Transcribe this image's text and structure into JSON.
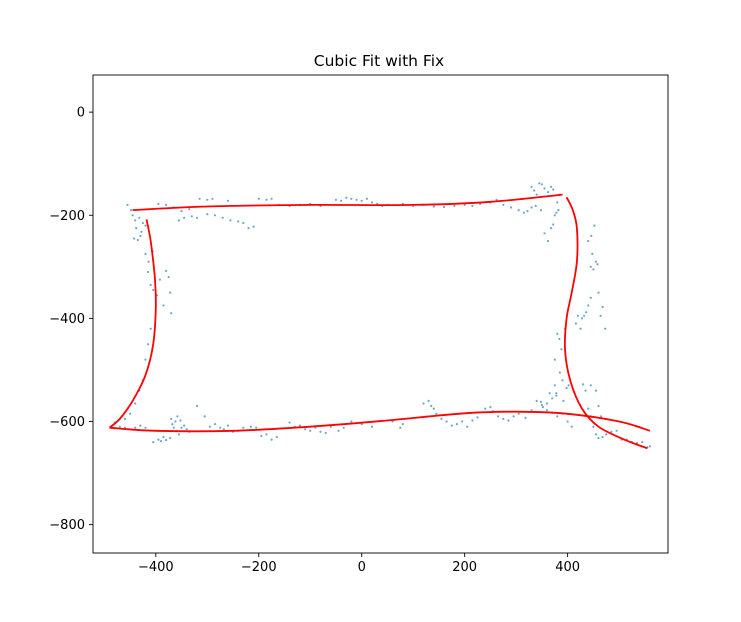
{
  "chart_data": {
    "type": "scatter",
    "title": "Cubic Fit with Fix",
    "xlabel": "",
    "ylabel": "",
    "xlim": [
      -522,
      595
    ],
    "ylim": [
      -855,
      72
    ],
    "xticks": [
      -400,
      -200,
      0,
      200,
      400
    ],
    "yticks": [
      0,
      -200,
      -400,
      -600,
      -800
    ],
    "xtick_labels": [
      "−400",
      "−200",
      "0",
      "200",
      "400"
    ],
    "ytick_labels": [
      "0",
      "−200",
      "−400",
      "−600",
      "−800"
    ],
    "grid": false,
    "legend": "none",
    "colors": {
      "points": "#1f77b4",
      "fit": "#ff0000"
    },
    "fit_curves": [
      {
        "points": [
          [
            -445,
            -190
          ],
          [
            -300,
            -183
          ],
          [
            -100,
            -180
          ],
          [
            100,
            -180
          ],
          [
            250,
            -174
          ],
          [
            390,
            -160
          ]
        ]
      },
      {
        "points": [
          [
            -490,
            -612
          ],
          [
            -400,
            -618
          ],
          [
            -250,
            -618
          ],
          [
            -100,
            -610
          ],
          [
            50,
            -598
          ],
          [
            200,
            -584
          ],
          [
            300,
            -581
          ],
          [
            400,
            -585
          ],
          [
            500,
            -600
          ],
          [
            560,
            -618
          ]
        ]
      },
      {
        "points": [
          [
            -418,
            -208
          ],
          [
            -410,
            -250
          ],
          [
            -402,
            -320
          ],
          [
            -400,
            -380
          ],
          [
            -405,
            -450
          ],
          [
            -420,
            -510
          ],
          [
            -445,
            -560
          ],
          [
            -470,
            -595
          ],
          [
            -490,
            -612
          ]
        ]
      },
      {
        "points": [
          [
            398,
            -165
          ],
          [
            410,
            -190
          ],
          [
            418,
            -225
          ],
          [
            418,
            -290
          ],
          [
            408,
            -350
          ],
          [
            398,
            -400
          ],
          [
            395,
            -460
          ],
          [
            405,
            -520
          ],
          [
            428,
            -575
          ],
          [
            460,
            -610
          ],
          [
            510,
            -635
          ],
          [
            555,
            -652
          ]
        ]
      }
    ],
    "scatter_points": [
      [
        -455,
        -180
      ],
      [
        -448,
        -190
      ],
      [
        -440,
        -210
      ],
      [
        -438,
        -225
      ],
      [
        -442,
        -245
      ],
      [
        -435,
        -248
      ],
      [
        -430,
        -240
      ],
      [
        -428,
        -232
      ],
      [
        -432,
        -205
      ],
      [
        -425,
        -215
      ],
      [
        -420,
        -220
      ],
      [
        -445,
        -200
      ],
      [
        -415,
        -310
      ],
      [
        -410,
        -335
      ],
      [
        -405,
        -345
      ],
      [
        -398,
        -355
      ],
      [
        -392,
        -325
      ],
      [
        -385,
        -375
      ],
      [
        -380,
        -308
      ],
      [
        -375,
        -320
      ],
      [
        -372,
        -350
      ],
      [
        -370,
        -390
      ],
      [
        -420,
        -275
      ],
      [
        -414,
        -290
      ],
      [
        -406,
        -270
      ],
      [
        -410,
        -420
      ],
      [
        -415,
        -450
      ],
      [
        -420,
        -480
      ],
      [
        -425,
        -520
      ],
      [
        -432,
        -540
      ],
      [
        -440,
        -565
      ],
      [
        -450,
        -585
      ],
      [
        -460,
        -595
      ],
      [
        -470,
        -610
      ],
      [
        -480,
        -602
      ],
      [
        -460,
        -612
      ],
      [
        -440,
        -612
      ],
      [
        -430,
        -608
      ],
      [
        -420,
        -612
      ],
      [
        -405,
        -640
      ],
      [
        -395,
        -635
      ],
      [
        -390,
        -638
      ],
      [
        -385,
        -630
      ],
      [
        -380,
        -636
      ],
      [
        -372,
        -632
      ],
      [
        -370,
        -595
      ],
      [
        -368,
        -605
      ],
      [
        -365,
        -612
      ],
      [
        -362,
        -600
      ],
      [
        -360,
        -618
      ],
      [
        -358,
        -590
      ],
      [
        -355,
        -625
      ],
      [
        -352,
        -598
      ],
      [
        -350,
        -612
      ],
      [
        -345,
        -608
      ],
      [
        -340,
        -615
      ],
      [
        -335,
        -620
      ],
      [
        -320,
        -570
      ],
      [
        -305,
        -590
      ],
      [
        -295,
        -610
      ],
      [
        -285,
        -605
      ],
      [
        -275,
        -612
      ],
      [
        -268,
        -615
      ],
      [
        -260,
        -608
      ],
      [
        -250,
        -620
      ],
      [
        -240,
        -618
      ],
      [
        -230,
        -612
      ],
      [
        -215,
        -610
      ],
      [
        -205,
        -612
      ],
      [
        -195,
        -628
      ],
      [
        -185,
        -625
      ],
      [
        -175,
        -635
      ],
      [
        -165,
        -630
      ],
      [
        -140,
        -602
      ],
      [
        -130,
        -610
      ],
      [
        -120,
        -608
      ],
      [
        -110,
        -615
      ],
      [
        -100,
        -618
      ],
      [
        -90,
        -612
      ],
      [
        -80,
        -620
      ],
      [
        -70,
        -622
      ],
      [
        -60,
        -610
      ],
      [
        -45,
        -618
      ],
      [
        -35,
        -612
      ],
      [
        -20,
        -600
      ],
      [
        0,
        -605
      ],
      [
        20,
        -610
      ],
      [
        60,
        -600
      ],
      [
        75,
        -612
      ],
      [
        80,
        -605
      ],
      [
        120,
        -565
      ],
      [
        130,
        -560
      ],
      [
        135,
        -570
      ],
      [
        140,
        -575
      ],
      [
        145,
        -585
      ],
      [
        155,
        -595
      ],
      [
        165,
        -600
      ],
      [
        175,
        -608
      ],
      [
        185,
        -605
      ],
      [
        195,
        -600
      ],
      [
        205,
        -610
      ],
      [
        215,
        -598
      ],
      [
        225,
        -592
      ],
      [
        240,
        -575
      ],
      [
        250,
        -572
      ],
      [
        255,
        -580
      ],
      [
        265,
        -590
      ],
      [
        275,
        -595
      ],
      [
        285,
        -598
      ],
      [
        295,
        -590
      ],
      [
        305,
        -585
      ],
      [
        318,
        -593
      ],
      [
        330,
        -578
      ],
      [
        340,
        -560
      ],
      [
        348,
        -562
      ],
      [
        352,
        -572
      ],
      [
        360,
        -565
      ],
      [
        365,
        -545
      ],
      [
        370,
        -555
      ],
      [
        378,
        -545
      ],
      [
        350,
        -568
      ],
      [
        360,
        -578
      ],
      [
        370,
        -583
      ],
      [
        380,
        -590
      ],
      [
        390,
        -585
      ],
      [
        380,
        -430
      ],
      [
        384,
        -440
      ],
      [
        388,
        -460
      ],
      [
        375,
        -480
      ],
      [
        375,
        -530
      ],
      [
        378,
        -550
      ],
      [
        385,
        -505
      ],
      [
        390,
        -520
      ],
      [
        392,
        -560
      ],
      [
        398,
        -535
      ],
      [
        402,
        -530
      ],
      [
        395,
        -420
      ],
      [
        400,
        -600
      ],
      [
        408,
        -610
      ],
      [
        412,
        -542
      ],
      [
        430,
        -528
      ],
      [
        435,
        -540
      ],
      [
        445,
        -530
      ],
      [
        455,
        -540
      ],
      [
        460,
        -570
      ],
      [
        465,
        -590
      ],
      [
        440,
        -575
      ],
      [
        445,
        -590
      ],
      [
        450,
        -610
      ],
      [
        455,
        -625
      ],
      [
        460,
        -632
      ],
      [
        468,
        -630
      ],
      [
        475,
        -625
      ],
      [
        485,
        -620
      ],
      [
        495,
        -618
      ],
      [
        505,
        -635
      ],
      [
        515,
        -635
      ],
      [
        525,
        -640
      ],
      [
        535,
        -642
      ],
      [
        545,
        -640
      ],
      [
        555,
        -650
      ],
      [
        560,
        -648
      ],
      [
        416,
        -410
      ],
      [
        420,
        -395
      ],
      [
        425,
        -420
      ],
      [
        428,
        -400
      ],
      [
        432,
        -395
      ],
      [
        436,
        -388
      ],
      [
        440,
        -375
      ],
      [
        445,
        -360
      ],
      [
        450,
        -305
      ],
      [
        455,
        -290
      ],
      [
        458,
        -295
      ],
      [
        460,
        -350
      ],
      [
        464,
        -395
      ],
      [
        468,
        -378
      ],
      [
        473,
        -420
      ],
      [
        440,
        -250
      ],
      [
        445,
        -300
      ],
      [
        448,
        -275
      ],
      [
        452,
        -220
      ],
      [
        446,
        -240
      ],
      [
        330,
        -145
      ],
      [
        335,
        -152
      ],
      [
        340,
        -160
      ],
      [
        345,
        -138
      ],
      [
        350,
        -140
      ],
      [
        355,
        -148
      ],
      [
        362,
        -155
      ],
      [
        368,
        -145
      ],
      [
        372,
        -150
      ],
      [
        375,
        -200
      ],
      [
        380,
        -175
      ],
      [
        385,
        -160
      ],
      [
        355,
        -235
      ],
      [
        362,
        -250
      ],
      [
        368,
        -225
      ],
      [
        372,
        -218
      ],
      [
        378,
        -195
      ],
      [
        382,
        -190
      ],
      [
        322,
        -192
      ],
      [
        330,
        -185
      ],
      [
        338,
        -182
      ],
      [
        348,
        -190
      ],
      [
        -355,
        -210
      ],
      [
        -345,
        -205
      ],
      [
        -330,
        -202
      ],
      [
        -320,
        -205
      ],
      [
        -300,
        -198
      ],
      [
        -285,
        -200
      ],
      [
        -270,
        -205
      ],
      [
        -255,
        -210
      ],
      [
        -240,
        -212
      ],
      [
        -230,
        -215
      ],
      [
        -220,
        -225
      ],
      [
        -210,
        -222
      ],
      [
        -395,
        -178
      ],
      [
        -380,
        -180
      ],
      [
        -365,
        -185
      ],
      [
        -350,
        -192
      ],
      [
        -335,
        -188
      ],
      [
        -315,
        -168
      ],
      [
        -300,
        -170
      ],
      [
        -290,
        -168
      ],
      [
        -260,
        -172
      ],
      [
        -200,
        -168
      ],
      [
        -185,
        -170
      ],
      [
        -175,
        -168
      ],
      [
        -160,
        -180
      ],
      [
        -140,
        -182
      ],
      [
        -120,
        -180
      ],
      [
        -100,
        -178
      ],
      [
        -80,
        -182
      ],
      [
        -50,
        -170
      ],
      [
        -40,
        -172
      ],
      [
        -30,
        -166
      ],
      [
        -20,
        -168
      ],
      [
        -10,
        -170
      ],
      [
        0,
        -172
      ],
      [
        10,
        -168
      ],
      [
        20,
        -175
      ],
      [
        30,
        -178
      ],
      [
        40,
        -182
      ],
      [
        50,
        -180
      ],
      [
        80,
        -178
      ],
      [
        100,
        -182
      ],
      [
        120,
        -180
      ],
      [
        140,
        -183
      ],
      [
        160,
        -184
      ],
      [
        180,
        -182
      ],
      [
        200,
        -180
      ],
      [
        215,
        -182
      ],
      [
        230,
        -178
      ],
      [
        250,
        -175
      ],
      [
        262,
        -170
      ],
      [
        275,
        -180
      ],
      [
        290,
        -185
      ],
      [
        305,
        -190
      ],
      [
        315,
        -195
      ]
    ]
  }
}
